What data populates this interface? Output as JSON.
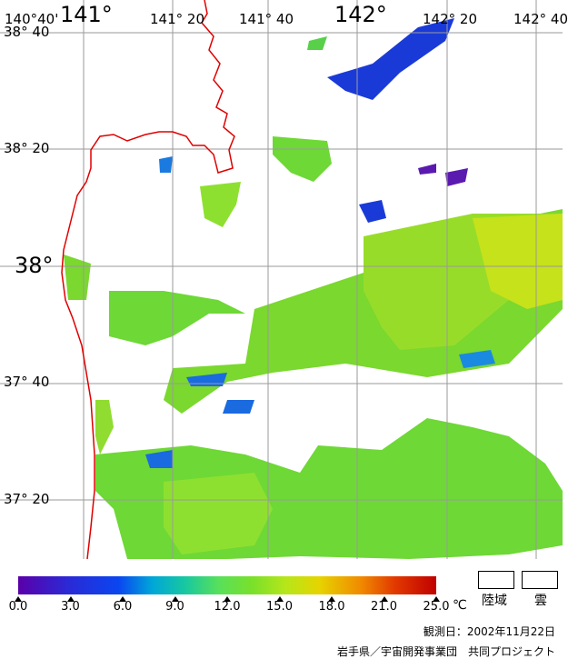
{
  "map": {
    "lon_labels": [
      "140°40'",
      "141°",
      "141° 20",
      "141° 40",
      "142°",
      "142° 20",
      "142° 40"
    ],
    "lat_labels": [
      "38° 40",
      "38° 20",
      "38°",
      "37° 40",
      "37° 20"
    ],
    "colors": {
      "coast": "#e00000",
      "grid": "#9a9a9a",
      "land_cloud": "#ffffff"
    }
  },
  "legend": {
    "ticks": [
      "0.0",
      "3.0",
      "6.0",
      "9.0",
      "12.0",
      "15.0",
      "18.0",
      "21.0",
      "25.0"
    ],
    "unit": "℃",
    "land_label": "陸域",
    "cloud_label": "雲"
  },
  "footer": {
    "observation_date": "観測日：2002年11月22日",
    "credit": "岩手県／宇宙開発事業団　共同プロジェクト"
  }
}
